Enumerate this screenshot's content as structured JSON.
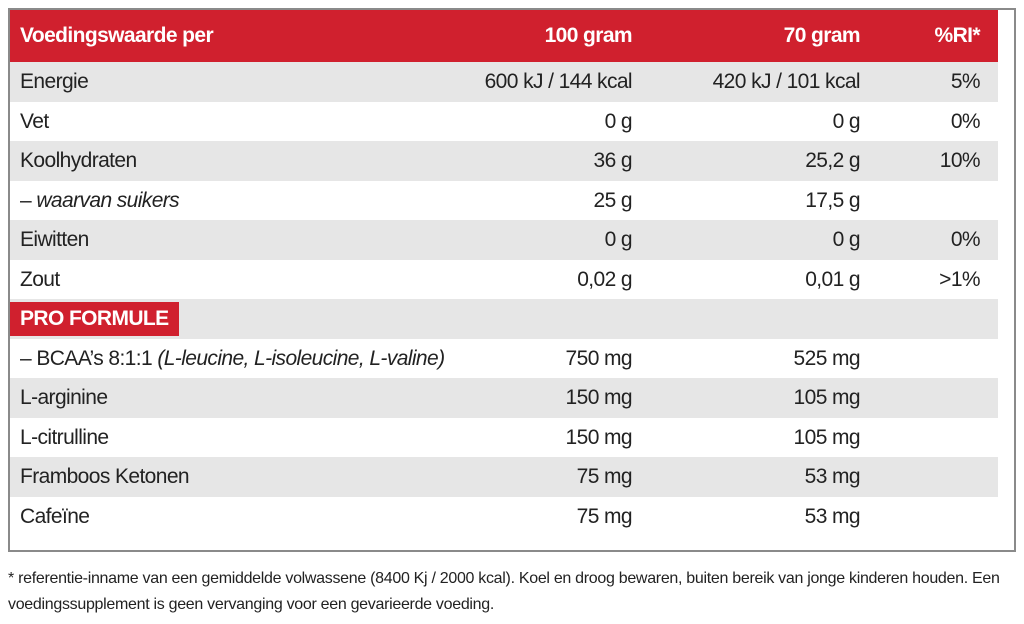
{
  "table": {
    "header": [
      "Voedingswaarde per",
      "100 gram",
      "70 gram",
      "%RI*"
    ],
    "rows": [
      {
        "label": "Energie",
        "cells": [
          "600 kJ / 144 kcal",
          "420 kJ / 101 kcal",
          "5%"
        ]
      },
      {
        "label": "Vet",
        "cells": [
          "0 g",
          "0 g",
          "0%"
        ]
      },
      {
        "label": "Koolhydraten",
        "cells": [
          "36 g",
          "25,2 g",
          "10%"
        ]
      },
      {
        "label": "–",
        "label_italic": "waarvan suikers",
        "cells": [
          "25 g",
          "17,5 g",
          null
        ]
      },
      {
        "label": "Eiwitten",
        "cells": [
          "0 g",
          "0 g",
          "0%"
        ]
      },
      {
        "label": "Zout",
        "cells": [
          "0,02 g",
          "0,01 g",
          ">1%"
        ]
      },
      {
        "section": "PRO FORMULE"
      },
      {
        "label": "– BCAA’s 8:1:1",
        "label_italic": "(L-leucine, L-isoleucine, L-valine)",
        "cells": [
          "750 mg",
          "525 mg",
          null
        ]
      },
      {
        "label": "L-arginine",
        "cells": [
          "150 mg",
          "105 mg",
          null
        ]
      },
      {
        "label": "L-citrulline",
        "cells": [
          "150 mg",
          "105 mg",
          null
        ]
      },
      {
        "label": "Framboos Ketonen",
        "cells": [
          "75 mg",
          "53 mg",
          null
        ]
      },
      {
        "label": "Cafeïne",
        "cells": [
          "75 mg",
          "53 mg",
          null
        ]
      }
    ]
  },
  "footnote": "* referentie-inname van een gemiddelde volwassene (8400 Kj / 2000 kcal). Koel en droog bewaren, buiten bereik van jonge kinderen houden. Een voedingssupplement is geen vervanging voor een gevarieerde voeding."
}
